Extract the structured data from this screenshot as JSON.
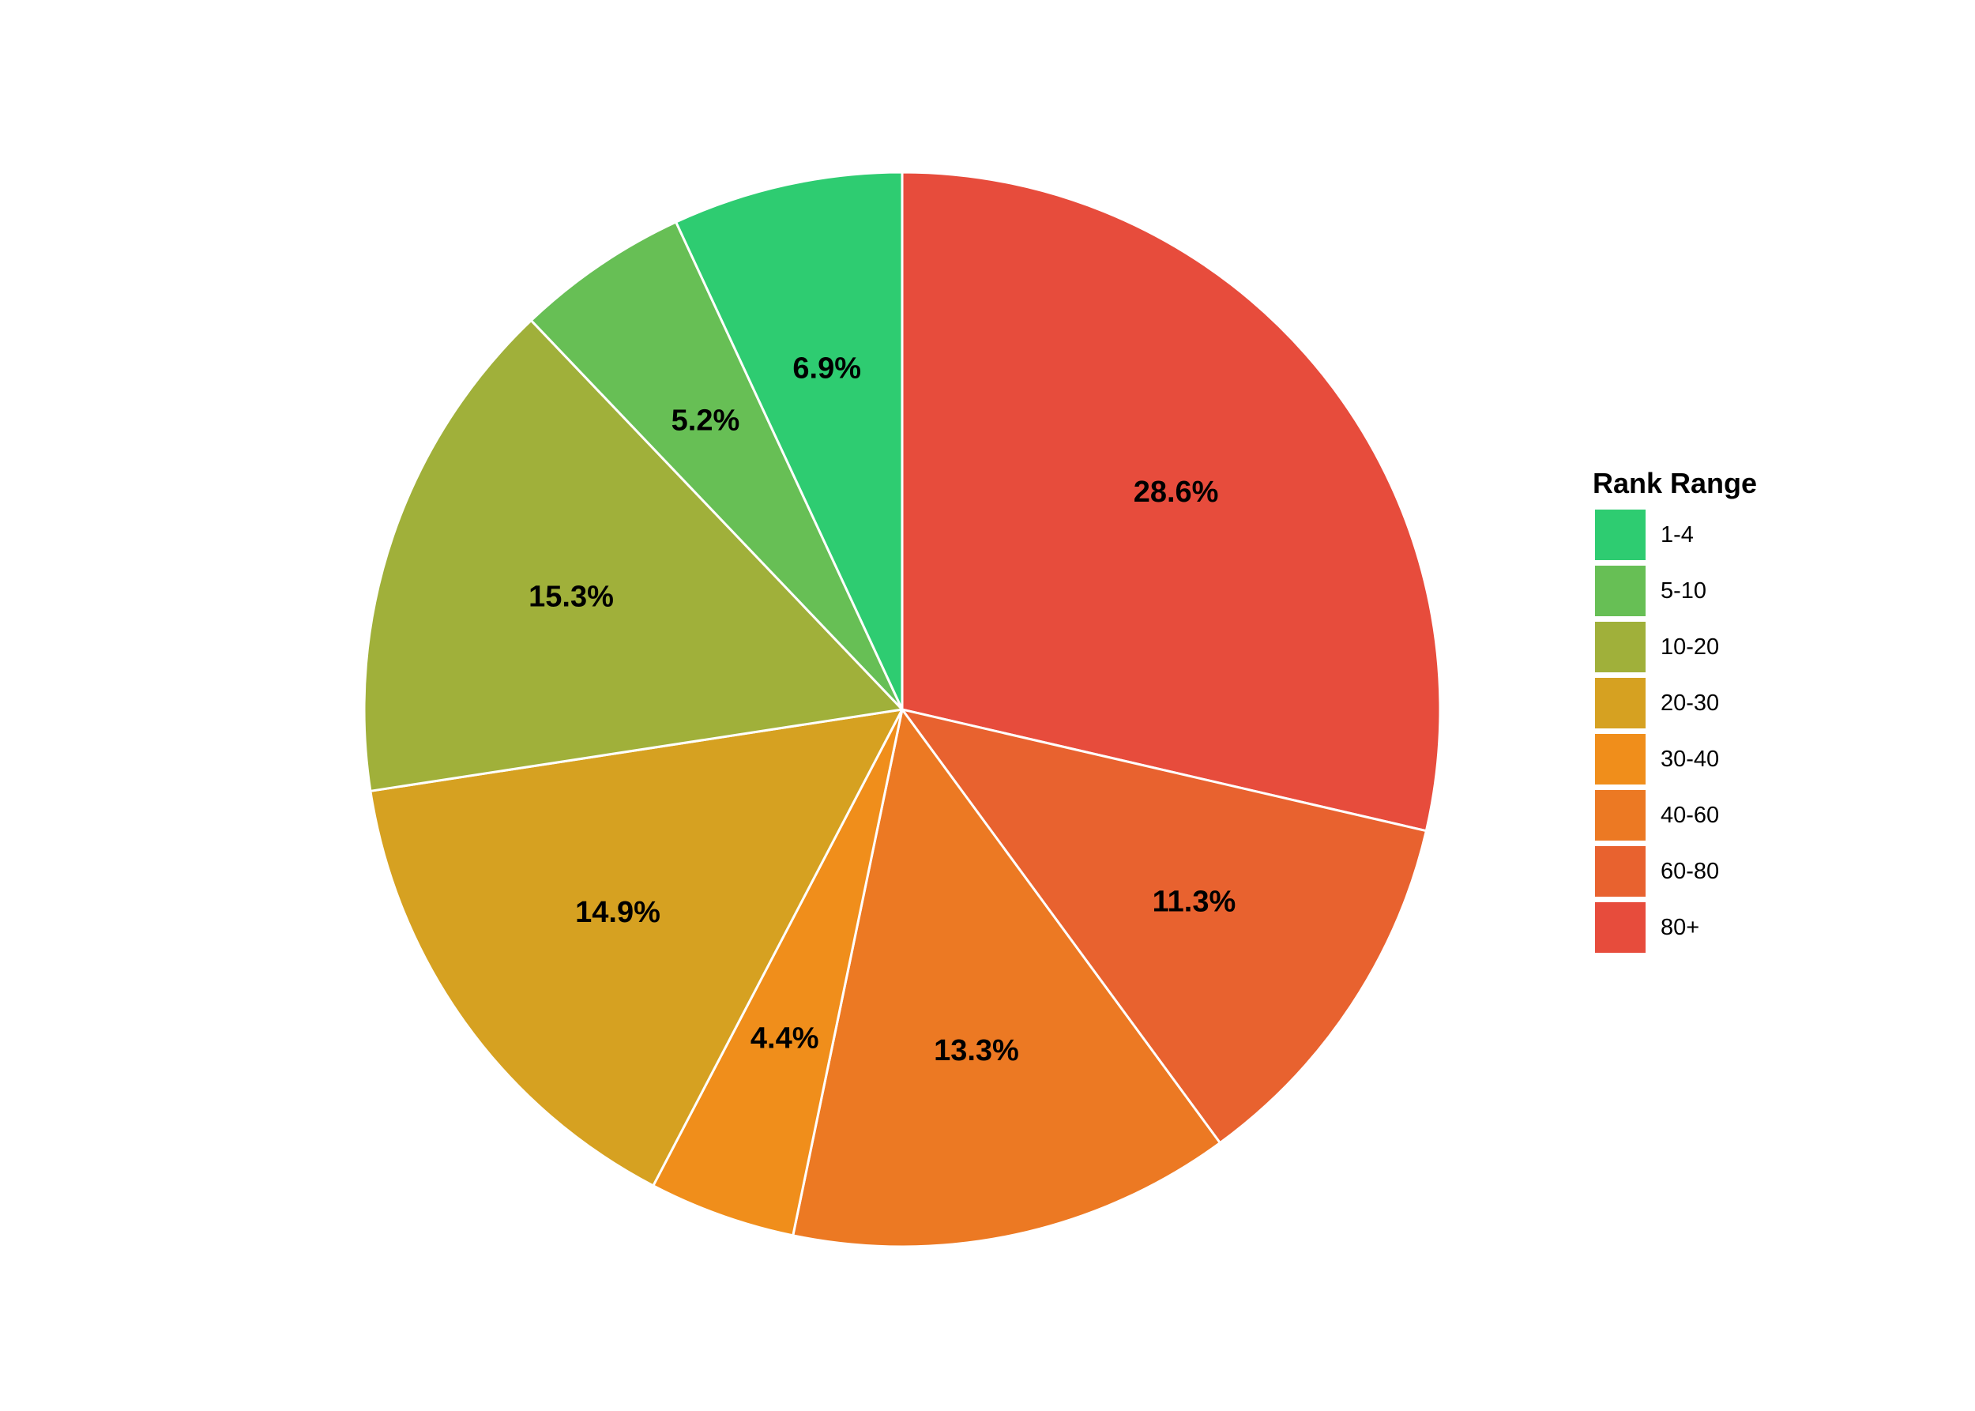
{
  "chart_data": {
    "type": "pie",
    "start_angle_deg": 90,
    "direction": "clockwise",
    "legend": {
      "title": "Rank Range",
      "position": "right"
    },
    "slices": [
      {
        "category": "80+",
        "value": 28.6,
        "label": "28.6%",
        "color": "#e74c3c"
      },
      {
        "category": "60-80",
        "value": 11.3,
        "label": "11.3%",
        "color": "#e8622f"
      },
      {
        "category": "40-60",
        "value": 13.3,
        "label": "13.3%",
        "color": "#ec7923"
      },
      {
        "category": "30-40",
        "value": 4.4,
        "label": "4.4%",
        "color": "#f08e1b"
      },
      {
        "category": "20-30",
        "value": 14.9,
        "label": "14.9%",
        "color": "#d6a121"
      },
      {
        "category": "10-20",
        "value": 15.3,
        "label": "15.3%",
        "color": "#a0b03a"
      },
      {
        "category": "5-10",
        "value": 5.2,
        "label": "5.2%",
        "color": "#67bf55"
      },
      {
        "category": "1-4",
        "value": 6.9,
        "label": "6.9%",
        "color": "#2ecc71"
      }
    ],
    "legend_order": [
      "1-4",
      "5-10",
      "10-20",
      "20-30",
      "30-40",
      "40-60",
      "60-80",
      "80+"
    ]
  }
}
